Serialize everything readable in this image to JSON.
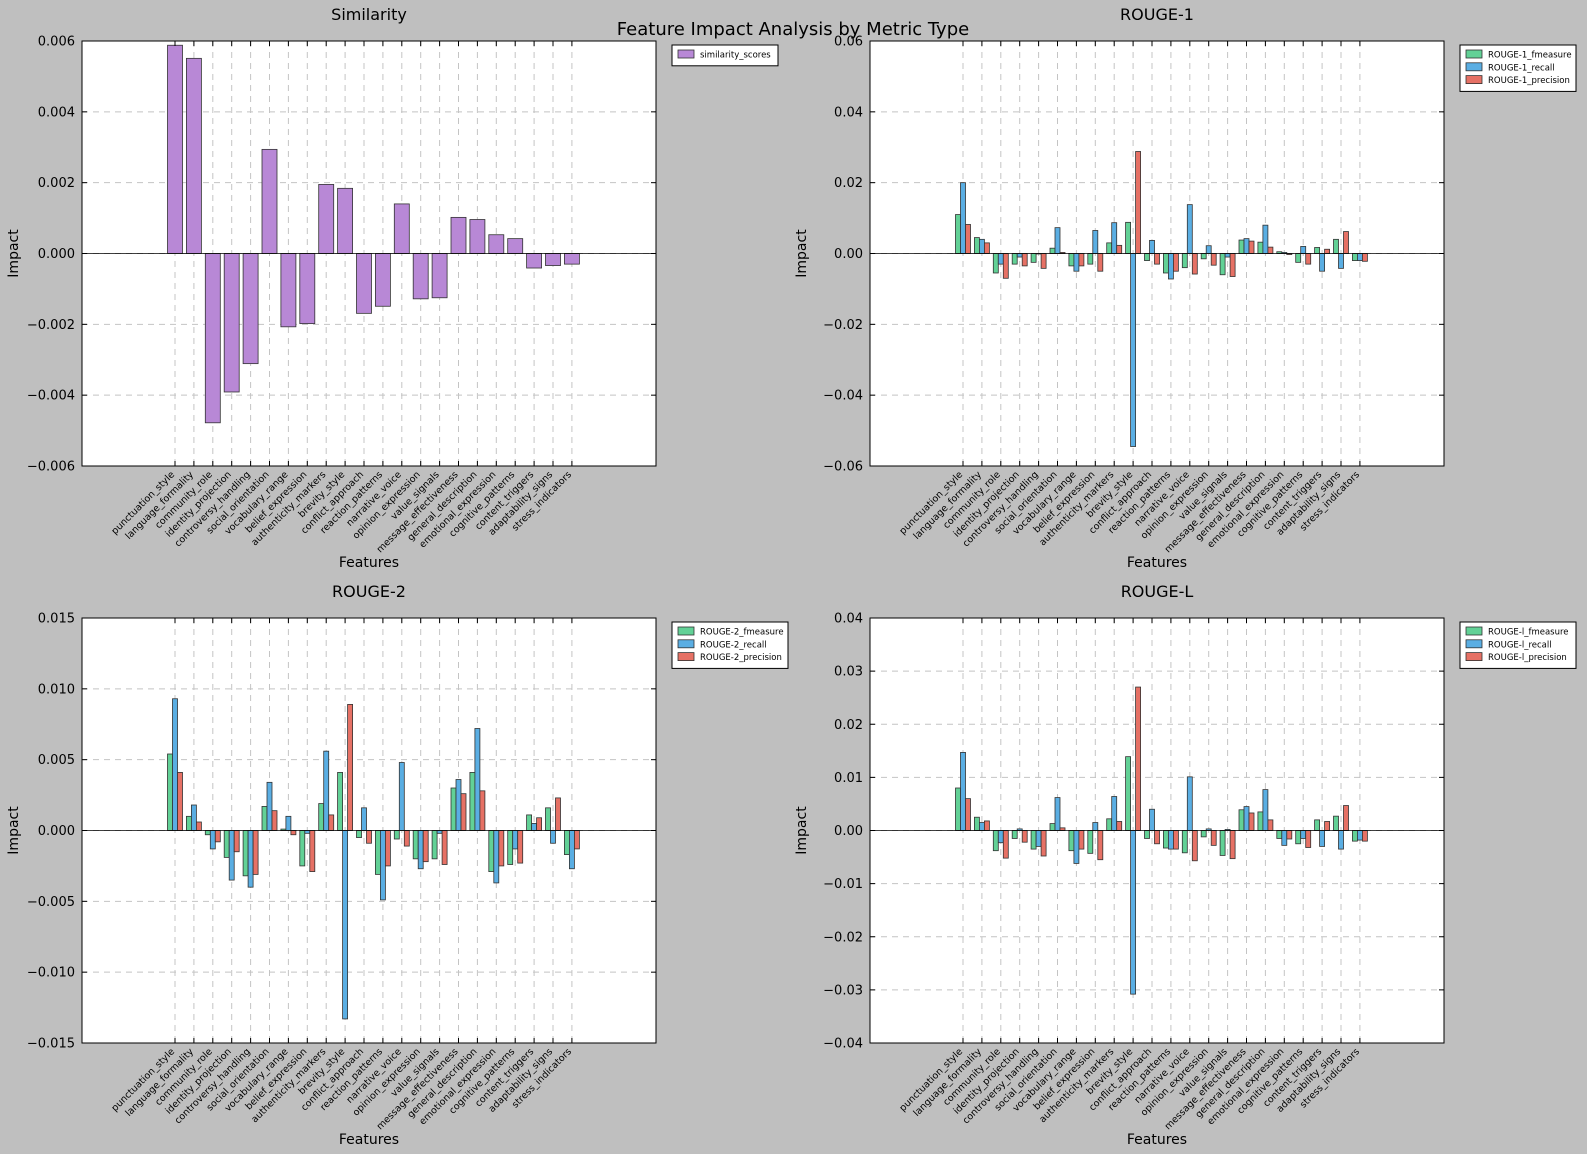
{
  "figure": {
    "title": "Feature Impact Analysis by Metric Type"
  },
  "colors": {
    "background": "#bfbfbf",
    "similarity": "#b888d6",
    "fmeasure": "#62d196",
    "recall": "#5aaee3",
    "precision": "#e67165"
  },
  "chart_data": [
    {
      "type": "bar",
      "title": "Similarity",
      "xlabel": "Features",
      "ylabel": "Impact",
      "ylim": [
        -0.006,
        0.006
      ],
      "yticks": [
        -0.006,
        -0.004,
        -0.002,
        0.0,
        0.002,
        0.004,
        0.006
      ],
      "ytick_labels": [
        "−0.006",
        "−0.004",
        "−0.002",
        "0.000",
        "0.002",
        "0.004",
        "0.006"
      ],
      "grid": true,
      "legend": "top-right-outside",
      "categories": [
        "punctuation_style",
        "language_formality",
        "community_role",
        "identity_projection",
        "controversy_handling",
        "social_orientation",
        "vocabulary_range",
        "belief_expression",
        "authenticity_markers",
        "brevity_style",
        "conflict_approach",
        "reaction_patterns",
        "narrative_voice",
        "opinion_expression",
        "value_signals",
        "message_effectiveness",
        "general_description",
        "emotional_expression",
        "cognitive_patterns",
        "content_triggers",
        "adaptability_signs",
        "stress_indicators"
      ],
      "series": [
        {
          "name": "similarity_scores",
          "color": "#b888d6",
          "values": [
            0.00588,
            0.00551,
            -0.00478,
            -0.00391,
            -0.00311,
            0.00294,
            -0.00207,
            -0.00198,
            0.00195,
            0.00184,
            -0.00169,
            -0.00149,
            0.0014,
            -0.00128,
            -0.00125,
            0.00102,
            0.00096,
            0.00053,
            0.00042,
            -0.00041,
            -0.00034,
            -0.0003
          ]
        }
      ]
    },
    {
      "type": "bar",
      "title": "ROUGE-1",
      "xlabel": "Features",
      "ylabel": "Impact",
      "ylim": [
        -0.06,
        0.06
      ],
      "yticks": [
        -0.06,
        -0.04,
        -0.02,
        0.0,
        0.02,
        0.04,
        0.06
      ],
      "ytick_labels": [
        "−0.06",
        "−0.04",
        "−0.02",
        "0.00",
        "0.02",
        "0.04",
        "0.06"
      ],
      "grid": true,
      "legend": "top-right-outside",
      "categories": [
        "punctuation_style",
        "language_formality",
        "community_role",
        "identity_projection",
        "controversy_handling",
        "social_orientation",
        "vocabulary_range",
        "belief_expression",
        "authenticity_markers",
        "brevity_style",
        "conflict_approach",
        "reaction_patterns",
        "narrative_voice",
        "opinion_expression",
        "value_signals",
        "message_effectiveness",
        "general_description",
        "emotional_expression",
        "cognitive_patterns",
        "content_triggers",
        "adaptability_signs",
        "stress_indicators"
      ],
      "series": [
        {
          "name": "ROUGE-1_fmeasure",
          "color": "#62d196",
          "values": [
            0.011,
            0.0045,
            -0.0055,
            -0.003,
            -0.0025,
            0.0015,
            -0.0035,
            -0.003,
            0.003,
            0.0088,
            -0.002,
            -0.0055,
            -0.004,
            -0.0015,
            -0.006,
            0.0038,
            0.0032,
            0.0005,
            -0.0025,
            0.0017,
            0.004,
            -0.002
          ]
        },
        {
          "name": "ROUGE-1_recall",
          "color": "#5aaee3",
          "values": [
            0.02,
            0.004,
            -0.003,
            -0.001,
            0.0,
            0.0073,
            -0.005,
            0.0065,
            0.0087,
            -0.0545,
            0.0037,
            -0.0072,
            0.0138,
            0.0022,
            -0.001,
            0.0042,
            0.008,
            0.0003,
            0.002,
            -0.005,
            -0.0042,
            -0.002
          ]
        },
        {
          "name": "ROUGE-1_precision",
          "color": "#e67165",
          "values": [
            0.0082,
            0.003,
            -0.007,
            -0.0035,
            -0.0042,
            0.0003,
            -0.0035,
            -0.005,
            0.0023,
            0.0288,
            -0.003,
            -0.005,
            -0.0058,
            -0.0033,
            -0.0065,
            0.0035,
            0.0018,
            -0.0003,
            -0.003,
            0.0012,
            0.0062,
            -0.0022
          ]
        }
      ]
    },
    {
      "type": "bar",
      "title": "ROUGE-2",
      "xlabel": "Features",
      "ylabel": "Impact",
      "ylim": [
        -0.015,
        0.015
      ],
      "yticks": [
        -0.015,
        -0.01,
        -0.005,
        0.0,
        0.005,
        0.01,
        0.015
      ],
      "ytick_labels": [
        "−0.015",
        "−0.010",
        "−0.005",
        "0.000",
        "0.005",
        "0.010",
        "0.015"
      ],
      "grid": true,
      "legend": "top-right-outside",
      "categories": [
        "punctuation_style",
        "language_formality",
        "community_role",
        "identity_projection",
        "controversy_handling",
        "social_orientation",
        "vocabulary_range",
        "belief_expression",
        "authenticity_markers",
        "brevity_style",
        "conflict_approach",
        "reaction_patterns",
        "narrative_voice",
        "opinion_expression",
        "value_signals",
        "message_effectiveness",
        "general_description",
        "emotional_expression",
        "cognitive_patterns",
        "content_triggers",
        "adaptability_signs",
        "stress_indicators"
      ],
      "series": [
        {
          "name": "ROUGE-2_fmeasure",
          "color": "#62d196",
          "values": [
            0.0054,
            0.001,
            -0.0003,
            -0.0019,
            -0.0032,
            0.0017,
            0.0001,
            -0.0025,
            0.0019,
            0.0041,
            -0.0005,
            -0.0031,
            -0.0006,
            -0.002,
            -0.002,
            0.003,
            0.0041,
            -0.0029,
            -0.0024,
            0.0011,
            0.0016,
            -0.0017
          ]
        },
        {
          "name": "ROUGE-2_recall",
          "color": "#5aaee3",
          "values": [
            0.0093,
            0.0018,
            -0.0013,
            -0.0035,
            -0.004,
            0.0034,
            0.001,
            -0.0002,
            0.0056,
            -0.0133,
            0.0016,
            -0.0049,
            0.0048,
            -0.0027,
            -0.0002,
            0.0036,
            0.0072,
            -0.0037,
            -0.0013,
            0.0005,
            -0.0009,
            -0.0027
          ]
        },
        {
          "name": "ROUGE-2_precision",
          "color": "#e67165",
          "values": [
            0.0041,
            0.0006,
            -0.0008,
            -0.0015,
            -0.0031,
            0.0014,
            -0.0003,
            -0.0029,
            0.0011,
            0.0089,
            -0.0009,
            -0.0025,
            -0.0011,
            -0.0022,
            -0.0024,
            0.0026,
            0.0028,
            -0.0025,
            -0.0023,
            0.0009,
            0.0023,
            -0.0013
          ]
        }
      ]
    },
    {
      "type": "bar",
      "title": "ROUGE-L",
      "xlabel": "Features",
      "ylabel": "Impact",
      "ylim": [
        -0.04,
        0.04
      ],
      "yticks": [
        -0.04,
        -0.03,
        -0.02,
        -0.01,
        0.0,
        0.01,
        0.02,
        0.03,
        0.04
      ],
      "ytick_labels": [
        "−0.04",
        "−0.03",
        "−0.02",
        "−0.01",
        "0.00",
        "0.01",
        "0.02",
        "0.03",
        "0.04"
      ],
      "grid": true,
      "legend": "top-right-outside",
      "categories": [
        "punctuation_style",
        "language_formality",
        "community_role",
        "identity_projection",
        "controversy_handling",
        "social_orientation",
        "vocabulary_range",
        "belief_expression",
        "authenticity_markers",
        "brevity_style",
        "conflict_approach",
        "reaction_patterns",
        "narrative_voice",
        "opinion_expression",
        "value_signals",
        "message_effectiveness",
        "general_description",
        "emotional_expression",
        "cognitive_patterns",
        "content_triggers",
        "adaptability_signs",
        "stress_indicators"
      ],
      "series": [
        {
          "name": "ROUGE-l_fmeasure",
          "color": "#62d196",
          "values": [
            0.008,
            0.0025,
            -0.0038,
            -0.0015,
            -0.0035,
            0.0013,
            -0.0038,
            -0.0043,
            0.0022,
            0.0139,
            -0.0015,
            -0.0033,
            -0.0042,
            -0.0012,
            -0.0047,
            0.0039,
            0.0035,
            -0.0015,
            -0.0025,
            0.002,
            0.0027,
            -0.002
          ]
        },
        {
          "name": "ROUGE-l_recall",
          "color": "#5aaee3",
          "values": [
            0.0147,
            0.0015,
            -0.0023,
            0.0003,
            -0.003,
            0.0062,
            -0.0062,
            0.0015,
            0.0064,
            -0.0308,
            0.004,
            -0.0035,
            0.0101,
            0.0003,
            0.0002,
            0.0045,
            0.0077,
            -0.0028,
            -0.0015,
            -0.003,
            -0.0035,
            -0.0018
          ]
        },
        {
          "name": "ROUGE-l_precision",
          "color": "#e67165",
          "values": [
            0.006,
            0.0018,
            -0.0052,
            -0.0022,
            -0.0048,
            0.0005,
            -0.0035,
            -0.0055,
            0.0017,
            0.027,
            -0.0025,
            -0.0035,
            -0.0057,
            -0.0028,
            -0.0053,
            0.0033,
            0.002,
            -0.0016,
            -0.0032,
            0.0017,
            0.0047,
            -0.002
          ]
        }
      ]
    }
  ]
}
